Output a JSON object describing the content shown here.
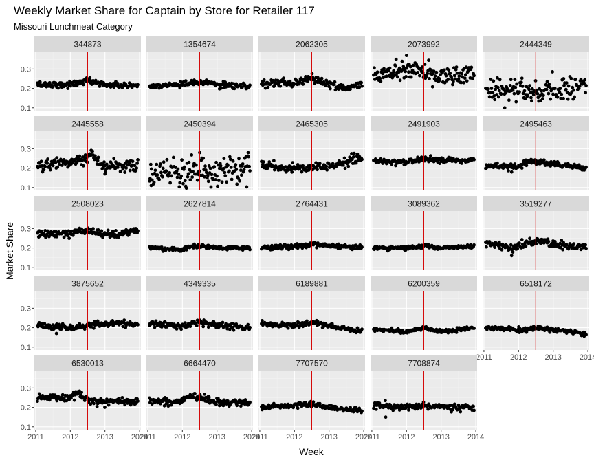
{
  "chart_data": {
    "type": "scatter",
    "title": "Weekly Market Share for Captain by Store for Retailer 117",
    "subtitle": "Missouri Lunchmeat Category",
    "xlabel": "Week",
    "ylabel": "Market Share",
    "x_ticks": [
      "2011",
      "2012",
      "2013",
      "2014"
    ],
    "y_ticks": [
      "0.1",
      "0.2",
      "0.3"
    ],
    "xlim": [
      "2010-12-18",
      "2014-01-15"
    ],
    "ylim": [
      0.085,
      0.39
    ],
    "vertical_line_x": "2012-07-01",
    "vertical_line_color": "#d40000",
    "point_color": "#000000",
    "grid": true,
    "facets": [
      {
        "label": "344873",
        "trend": [
          [
            2011,
            0.22
          ],
          [
            2012,
            0.22
          ],
          [
            2012.5,
            0.24
          ],
          [
            2013,
            0.22
          ],
          [
            2014,
            0.21
          ]
        ],
        "noise": 0.008,
        "outliers": []
      },
      {
        "label": "1354674",
        "trend": [
          [
            2011,
            0.21
          ],
          [
            2012,
            0.22
          ],
          [
            2012.5,
            0.23
          ],
          [
            2013,
            0.22
          ],
          [
            2014,
            0.21
          ]
        ],
        "noise": 0.007,
        "outliers": []
      },
      {
        "label": "2062305",
        "trend": [
          [
            2011,
            0.23
          ],
          [
            2012,
            0.23
          ],
          [
            2012.5,
            0.25
          ],
          [
            2013,
            0.22
          ],
          [
            2013.5,
            0.2
          ],
          [
            2014,
            0.22
          ]
        ],
        "noise": 0.01,
        "outliers": []
      },
      {
        "label": "2073992",
        "trend": [
          [
            2011,
            0.26
          ],
          [
            2011.5,
            0.28
          ],
          [
            2012,
            0.31
          ],
          [
            2012.5,
            0.29
          ],
          [
            2013,
            0.26
          ],
          [
            2014,
            0.28
          ]
        ],
        "noise": 0.025,
        "outliers": [
          [
            2011.7,
            0.35
          ],
          [
            2012.0,
            0.37
          ]
        ]
      },
      {
        "label": "2444349",
        "trend": [
          [
            2011,
            0.19
          ],
          [
            2012,
            0.19
          ],
          [
            2012.5,
            0.18
          ],
          [
            2013,
            0.2
          ],
          [
            2014,
            0.21
          ]
        ],
        "noise": 0.03,
        "outliers": [
          [
            2011.6,
            0.1
          ],
          [
            2013.3,
            0.25
          ]
        ]
      },
      {
        "label": "2445558",
        "trend": [
          [
            2011,
            0.21
          ],
          [
            2011.8,
            0.23
          ],
          [
            2012.5,
            0.25
          ],
          [
            2012.6,
            0.28
          ],
          [
            2012.9,
            0.2
          ],
          [
            2013.5,
            0.21
          ],
          [
            2014,
            0.22
          ]
        ],
        "noise": 0.015,
        "outliers": [
          [
            2013.0,
            0.17
          ]
        ]
      },
      {
        "label": "2450394",
        "trend": [
          [
            2011,
            0.17
          ],
          [
            2012,
            0.19
          ],
          [
            2012.5,
            0.19
          ],
          [
            2013,
            0.17
          ],
          [
            2014,
            0.22
          ]
        ],
        "noise": 0.035,
        "outliers": [
          [
            2011.1,
            0.11
          ],
          [
            2012.5,
            0.28
          ],
          [
            2013.9,
            0.28
          ]
        ]
      },
      {
        "label": "2465305",
        "trend": [
          [
            2011,
            0.21
          ],
          [
            2012,
            0.2
          ],
          [
            2012.5,
            0.2
          ],
          [
            2013,
            0.21
          ],
          [
            2013.5,
            0.23
          ],
          [
            2014,
            0.26
          ]
        ],
        "noise": 0.012,
        "outliers": []
      },
      {
        "label": "2491903",
        "trend": [
          [
            2011,
            0.24
          ],
          [
            2012,
            0.23
          ],
          [
            2012.5,
            0.25
          ],
          [
            2013,
            0.24
          ],
          [
            2014,
            0.24
          ]
        ],
        "noise": 0.007,
        "outliers": []
      },
      {
        "label": "2495463",
        "trend": [
          [
            2011,
            0.21
          ],
          [
            2012,
            0.21
          ],
          [
            2012.4,
            0.24
          ],
          [
            2013,
            0.22
          ],
          [
            2014,
            0.2
          ]
        ],
        "noise": 0.007,
        "outliers": [
          [
            2011.8,
            0.18
          ]
        ]
      },
      {
        "label": "2508023",
        "trend": [
          [
            2011,
            0.27
          ],
          [
            2012,
            0.28
          ],
          [
            2012.5,
            0.29
          ],
          [
            2013,
            0.27
          ],
          [
            2014,
            0.29
          ]
        ],
        "noise": 0.01,
        "outliers": []
      },
      {
        "label": "2627814",
        "trend": [
          [
            2011,
            0.2
          ],
          [
            2012,
            0.19
          ],
          [
            2012.3,
            0.21
          ],
          [
            2013,
            0.2
          ],
          [
            2014,
            0.2
          ]
        ],
        "noise": 0.005,
        "outliers": []
      },
      {
        "label": "2764431",
        "trend": [
          [
            2011,
            0.2
          ],
          [
            2012,
            0.21
          ],
          [
            2012.5,
            0.22
          ],
          [
            2013,
            0.21
          ],
          [
            2014,
            0.2
          ]
        ],
        "noise": 0.006,
        "outliers": []
      },
      {
        "label": "3089362",
        "trend": [
          [
            2011,
            0.2
          ],
          [
            2012,
            0.2
          ],
          [
            2012.5,
            0.21
          ],
          [
            2013,
            0.2
          ],
          [
            2014,
            0.21
          ]
        ],
        "noise": 0.005,
        "outliers": []
      },
      {
        "label": "3519277",
        "trend": [
          [
            2011,
            0.22
          ],
          [
            2011.8,
            0.2
          ],
          [
            2012.5,
            0.24
          ],
          [
            2013,
            0.22
          ],
          [
            2014,
            0.2
          ]
        ],
        "noise": 0.01,
        "outliers": [
          [
            2011.8,
            0.16
          ]
        ]
      },
      {
        "label": "3875652",
        "trend": [
          [
            2011,
            0.21
          ],
          [
            2012,
            0.2
          ],
          [
            2012.5,
            0.21
          ],
          [
            2013,
            0.22
          ],
          [
            2014,
            0.22
          ]
        ],
        "noise": 0.008,
        "outliers": [
          [
            2011.6,
            0.17
          ]
        ]
      },
      {
        "label": "4349335",
        "trend": [
          [
            2011,
            0.22
          ],
          [
            2012,
            0.21
          ],
          [
            2012.5,
            0.23
          ],
          [
            2013,
            0.21
          ],
          [
            2014,
            0.2
          ]
        ],
        "noise": 0.008,
        "outliers": []
      },
      {
        "label": "6189881",
        "trend": [
          [
            2011,
            0.22
          ],
          [
            2012,
            0.21
          ],
          [
            2012.5,
            0.23
          ],
          [
            2013,
            0.21
          ],
          [
            2014,
            0.18
          ]
        ],
        "noise": 0.006,
        "outliers": []
      },
      {
        "label": "6200359",
        "trend": [
          [
            2011,
            0.19
          ],
          [
            2012,
            0.18
          ],
          [
            2012.5,
            0.2
          ],
          [
            2013,
            0.18
          ],
          [
            2014,
            0.2
          ]
        ],
        "noise": 0.005,
        "outliers": []
      },
      {
        "label": "6518172",
        "trend": [
          [
            2011,
            0.2
          ],
          [
            2012,
            0.19
          ],
          [
            2012.5,
            0.2
          ],
          [
            2013,
            0.19
          ],
          [
            2014,
            0.17
          ]
        ],
        "noise": 0.006,
        "outliers": []
      },
      {
        "label": "6530013",
        "trend": [
          [
            2011,
            0.25
          ],
          [
            2012,
            0.25
          ],
          [
            2012.2,
            0.27
          ],
          [
            2012.7,
            0.23
          ],
          [
            2013,
            0.23
          ],
          [
            2014,
            0.23
          ]
        ],
        "noise": 0.009,
        "outliers": [
          [
            2012.2,
            0.28
          ]
        ]
      },
      {
        "label": "6664470",
        "trend": [
          [
            2011,
            0.23
          ],
          [
            2012,
            0.23
          ],
          [
            2012.2,
            0.26
          ],
          [
            2013,
            0.23
          ],
          [
            2014,
            0.22
          ]
        ],
        "noise": 0.009,
        "outliers": []
      },
      {
        "label": "7707570",
        "trend": [
          [
            2011,
            0.2
          ],
          [
            2012,
            0.21
          ],
          [
            2012.5,
            0.22
          ],
          [
            2013,
            0.2
          ],
          [
            2014,
            0.18
          ]
        ],
        "noise": 0.006,
        "outliers": []
      },
      {
        "label": "7708874",
        "trend": [
          [
            2011,
            0.21
          ],
          [
            2011.8,
            0.2
          ],
          [
            2012.5,
            0.21
          ],
          [
            2013,
            0.2
          ],
          [
            2014,
            0.2
          ]
        ],
        "noise": 0.008,
        "outliers": [
          [
            2011.4,
            0.15
          ]
        ]
      }
    ]
  }
}
